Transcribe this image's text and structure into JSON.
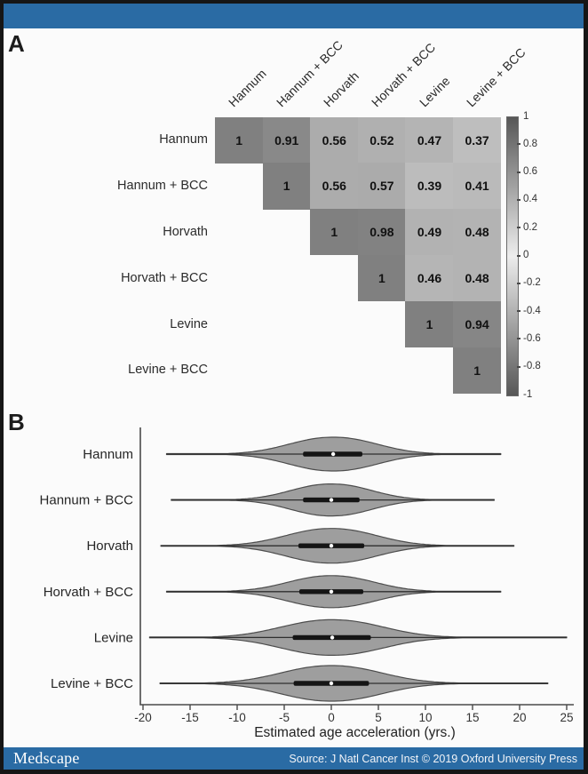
{
  "panel_a_label": "A",
  "panel_b_label": "B",
  "footer": {
    "logo": "Medscape",
    "source": "Source: J Natl Cancer Inst © 2019 Oxford University Press"
  },
  "colors": {
    "bar_blue": "#2a6ba4",
    "violin_fill": "#9e9e9e",
    "violin_stroke": "#4d4d4d",
    "axis": "#4a4a4a"
  },
  "chart_data": [
    {
      "type": "heatmap",
      "description": "Upper-triangle correlation matrix of epigenetic age acceleration measures",
      "labels": [
        "Hannum",
        "Hannum + BCC",
        "Horvath",
        "Horvath + BCC",
        "Levine",
        "Levine + BCC"
      ],
      "values": [
        [
          1,
          0.91,
          0.56,
          0.52,
          0.47,
          0.37
        ],
        [
          null,
          1,
          0.56,
          0.57,
          0.39,
          0.41
        ],
        [
          null,
          null,
          1,
          0.98,
          0.49,
          0.48
        ],
        [
          null,
          null,
          null,
          1,
          0.46,
          0.48
        ],
        [
          null,
          null,
          null,
          null,
          1,
          0.94
        ],
        [
          null,
          null,
          null,
          null,
          null,
          1
        ]
      ],
      "colorbar": {
        "min": -1,
        "max": 1,
        "tick_labels": [
          "1",
          "0.8",
          "0.6",
          "0.4",
          "0.2",
          "0",
          "-0.2",
          "-0.4",
          "-0.6",
          "-0.8",
          "-1"
        ]
      },
      "legend_position": "right",
      "grid": false
    },
    {
      "type": "violin",
      "orientation": "horizontal",
      "categories": [
        "Hannum",
        "Hannum + BCC",
        "Horvath",
        "Horvath + BCC",
        "Levine",
        "Levine + BCC"
      ],
      "xlabel": "Estimated age acceleration (yrs.)",
      "xlim": [
        -20,
        25
      ],
      "x_ticks": [
        -20,
        -15,
        -10,
        -5,
        0,
        5,
        10,
        15,
        20,
        25
      ],
      "grid": false,
      "series": [
        {
          "name": "Hannum",
          "min": -17.5,
          "q1": -3.0,
          "median": 0.2,
          "q3": 3.3,
          "max": 18.0
        },
        {
          "name": "Hannum + BCC",
          "min": -17.0,
          "q1": -3.0,
          "median": 0.0,
          "q3": 3.0,
          "max": 17.3
        },
        {
          "name": "Horvath",
          "min": -18.1,
          "q1": -3.5,
          "median": 0.0,
          "q3": 3.5,
          "max": 19.4
        },
        {
          "name": "Horvath + BCC",
          "min": -17.5,
          "q1": -3.4,
          "median": 0.0,
          "q3": 3.4,
          "max": 18.0
        },
        {
          "name": "Levine",
          "min": -19.3,
          "q1": -4.1,
          "median": 0.1,
          "q3": 4.2,
          "max": 25.0
        },
        {
          "name": "Levine + BCC",
          "min": -18.2,
          "q1": -4.0,
          "median": 0.0,
          "q3": 4.0,
          "max": 23.0
        }
      ]
    }
  ]
}
